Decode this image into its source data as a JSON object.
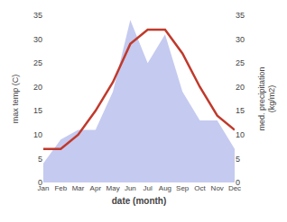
{
  "chart_data": {
    "type": "line",
    "categories": [
      "Jan",
      "Feb",
      "Mar",
      "Apr",
      "May",
      "Jun",
      "Jul",
      "Aug",
      "Sep",
      "Oct",
      "Nov",
      "Dec"
    ],
    "series": [
      {
        "type": "area",
        "color": "#c5caf0",
        "axis": "y2",
        "values": [
          4,
          9,
          11,
          11,
          19,
          34,
          25,
          31,
          19,
          13,
          13,
          7
        ]
      },
      {
        "type": "line",
        "color": "#c0392b",
        "values": [
          7,
          7,
          10,
          15,
          21,
          29,
          32,
          32,
          27,
          20,
          14,
          11
        ]
      }
    ],
    "xlabel": "date (month)",
    "ylabel": "max temp (C)",
    "y2label": "med. precipitation\n(kg/m2)",
    "ylim": [
      0,
      35
    ],
    "yticks": [
      0,
      5,
      10,
      15,
      20,
      25,
      30,
      35
    ],
    "y2lim": [
      0,
      35
    ],
    "y2ticks": [
      0,
      5,
      10,
      15,
      20,
      25,
      30,
      35
    ],
    "grid": false
  }
}
